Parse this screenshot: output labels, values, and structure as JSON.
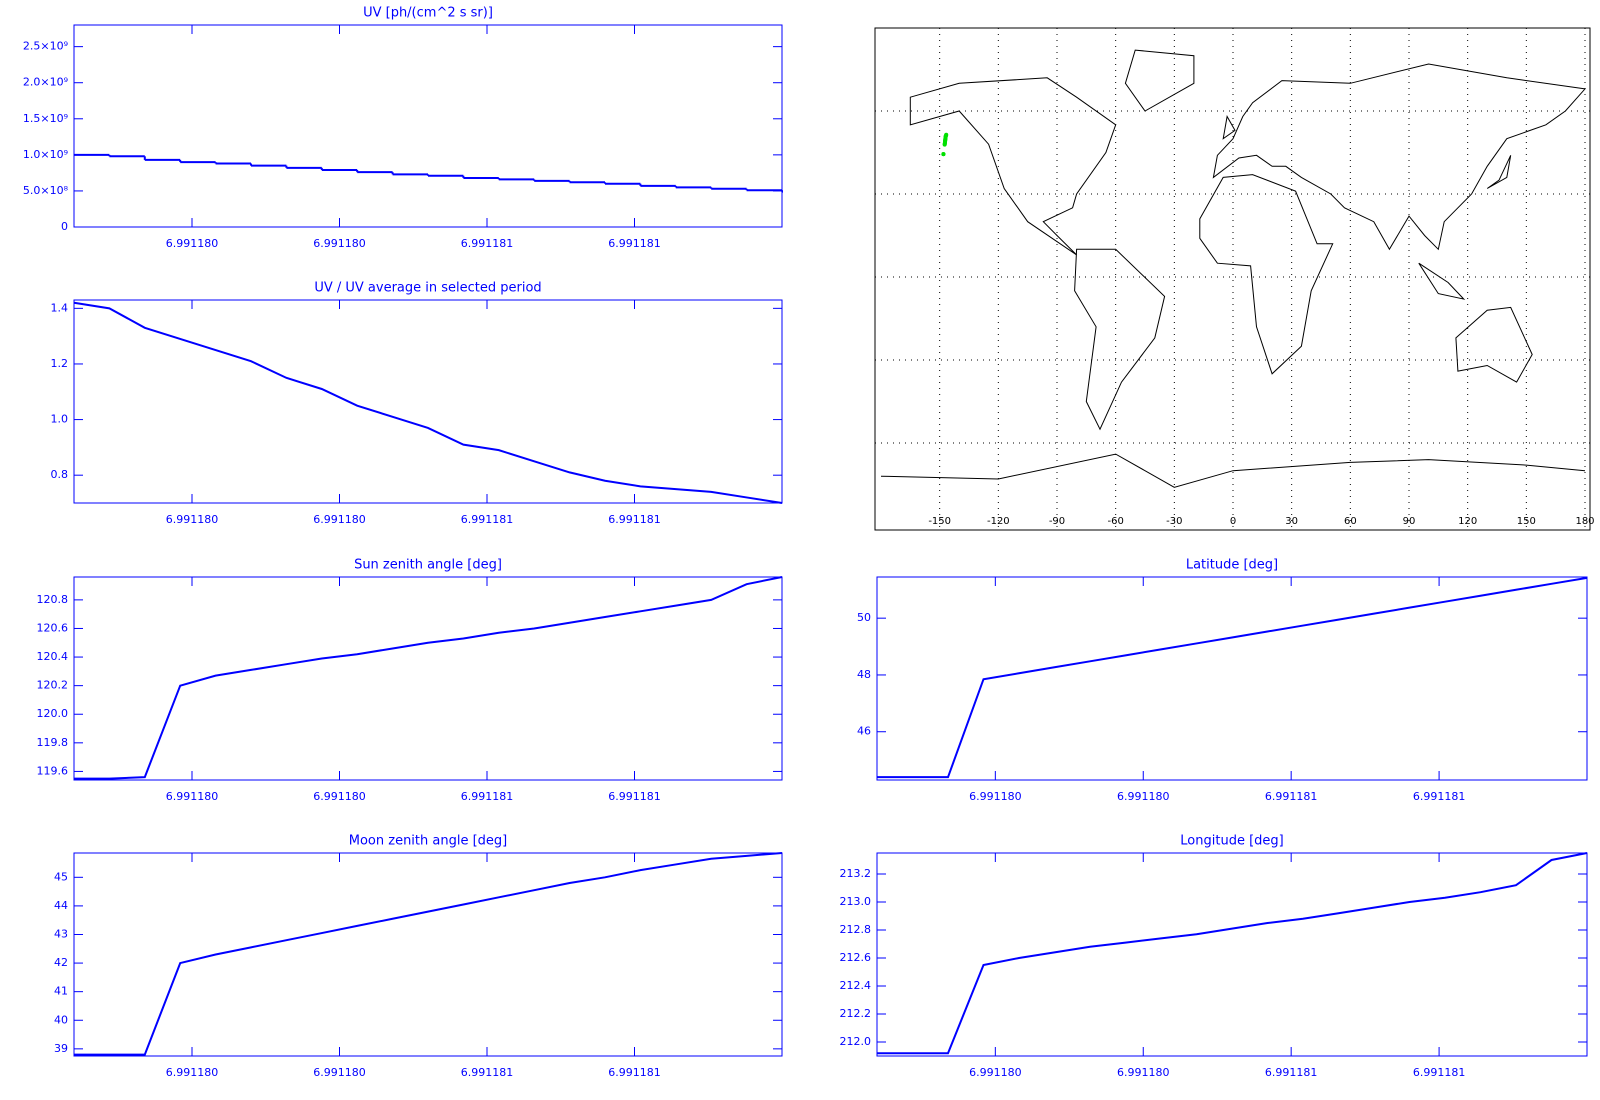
{
  "chart_data": [
    {
      "type": "step",
      "title": "UV [ph/(cm^2 s sr)]",
      "color": "#0000ff",
      "x": [
        6.9911791,
        6.99117922,
        6.99117934,
        6.99117946,
        6.99117958,
        6.9911797,
        6.99117982,
        6.99117994,
        6.99118006,
        6.99118018,
        6.9911803,
        6.99118042,
        6.99118054,
        6.99118066,
        6.99118078,
        6.9911809,
        6.99118102,
        6.99118114,
        6.99118126,
        6.99118138,
        6.9911815
      ],
      "values": [
        1000000000,
        980000000,
        930000000,
        900000000,
        880000000,
        850000000,
        820000000,
        790000000,
        760000000,
        730000000,
        710000000,
        680000000,
        660000000,
        640000000,
        620000000,
        600000000,
        570000000,
        550000000,
        530000000,
        510000000,
        490000000
      ],
      "xlim": [
        6.9911791,
        6.9911815
      ],
      "xticks": [
        {
          "value": 6.9911795,
          "label": "6.991180"
        },
        {
          "value": 6.99118,
          "label": "6.991180"
        },
        {
          "value": 6.9911805,
          "label": "6.991181"
        },
        {
          "value": 6.991181,
          "label": "6.991181"
        }
      ],
      "ylim": [
        0,
        2800000000
      ],
      "yticks": [
        0,
        {
          "value": 500000000,
          "label": "5.0×10⁸"
        },
        {
          "value": 1000000000,
          "label": "1.0×10⁹"
        },
        {
          "value": 1500000000,
          "label": "1.5×10⁹"
        },
        {
          "value": 2000000000,
          "label": "2.0×10⁹"
        },
        {
          "value": 2500000000,
          "label": "2.5×10⁹"
        }
      ]
    },
    {
      "type": "line",
      "title": "UV / UV average in selected period",
      "color": "#0000ff",
      "x": [
        6.9911791,
        6.99117922,
        6.99117934,
        6.99117946,
        6.99117958,
        6.9911797,
        6.99117982,
        6.99117994,
        6.99118006,
        6.99118018,
        6.9911803,
        6.99118042,
        6.99118054,
        6.99118066,
        6.99118078,
        6.9911809,
        6.99118102,
        6.99118114,
        6.99118126,
        6.99118138,
        6.9911815
      ],
      "values": [
        1.42,
        1.4,
        1.33,
        1.29,
        1.25,
        1.21,
        1.15,
        1.11,
        1.05,
        1.01,
        0.97,
        0.91,
        0.89,
        0.85,
        0.81,
        0.78,
        0.76,
        0.75,
        0.74,
        0.72,
        0.7
      ],
      "xlim": [
        6.9911791,
        6.9911815
      ],
      "xticks": [
        {
          "value": 6.9911795,
          "label": "6.991180"
        },
        {
          "value": 6.99118,
          "label": "6.991180"
        },
        {
          "value": 6.9911805,
          "label": "6.991181"
        },
        {
          "value": 6.991181,
          "label": "6.991181"
        }
      ],
      "ylim": [
        0.7,
        1.43
      ],
      "yticks": [
        0.8,
        {
          "value": 1,
          "label": "1.0"
        },
        1.2,
        1.4
      ]
    },
    {
      "type": "map",
      "xlim": [
        -180,
        180
      ],
      "ylim": [
        -90,
        90
      ],
      "xticks": [
        -150,
        -120,
        -90,
        -60,
        -30,
        0,
        30,
        60,
        90,
        120,
        150,
        180
      ],
      "ygrid": [
        -60,
        -30,
        0,
        30,
        60
      ],
      "grid": true,
      "track_color": "#00e000"
    },
    {
      "type": "line",
      "title": "Sun zenith angle [deg]",
      "color": "#0000ff",
      "x": [
        6.9911791,
        6.99117922,
        6.99117934,
        6.99117946,
        6.99117958,
        6.9911797,
        6.99117982,
        6.99117994,
        6.99118006,
        6.99118018,
        6.9911803,
        6.99118042,
        6.99118054,
        6.99118066,
        6.99118078,
        6.9911809,
        6.99118102,
        6.99118114,
        6.99118126,
        6.99118138,
        6.9911815
      ],
      "values": [
        119.55,
        119.55,
        119.56,
        120.2,
        120.27,
        120.31,
        120.35,
        120.39,
        120.42,
        120.46,
        120.5,
        120.53,
        120.57,
        120.6,
        120.64,
        120.68,
        120.72,
        120.76,
        120.8,
        120.91,
        120.96
      ],
      "xlim": [
        6.9911791,
        6.9911815
      ],
      "xticks": [
        {
          "value": 6.9911795,
          "label": "6.991180"
        },
        {
          "value": 6.99118,
          "label": "6.991180"
        },
        {
          "value": 6.9911805,
          "label": "6.991181"
        },
        {
          "value": 6.991181,
          "label": "6.991181"
        }
      ],
      "ylim": [
        119.54,
        120.96
      ],
      "yticks": [
        119.6,
        119.8,
        {
          "value": 120,
          "label": "120.0"
        },
        120.2,
        120.4,
        120.6,
        120.8
      ]
    },
    {
      "type": "line",
      "title": "Latitude [deg]",
      "color": "#0000ff",
      "x": [
        6.9911791,
        6.99117922,
        6.99117934,
        6.99117946,
        6.99117958,
        6.9911797,
        6.99117982,
        6.99117994,
        6.99118006,
        6.99118018,
        6.9911803,
        6.99118042,
        6.99118054,
        6.99118066,
        6.99118078,
        6.9911809,
        6.99118102,
        6.99118114,
        6.99118126,
        6.99118138,
        6.9911815
      ],
      "values": [
        44.4,
        44.4,
        44.4,
        47.85,
        48.06,
        48.27,
        48.48,
        48.69,
        48.9,
        49.11,
        49.32,
        49.53,
        49.74,
        49.95,
        50.16,
        50.37,
        50.58,
        50.79,
        51.0,
        51.21,
        51.42
      ],
      "xlim": [
        6.9911791,
        6.9911815
      ],
      "xticks": [
        {
          "value": 6.9911795,
          "label": "6.991180"
        },
        {
          "value": 6.99118,
          "label": "6.991180"
        },
        {
          "value": 6.9911805,
          "label": "6.991181"
        },
        {
          "value": 6.991181,
          "label": "6.991181"
        }
      ],
      "ylim": [
        44.3,
        51.45
      ],
      "yticks": [
        46,
        48,
        50
      ]
    },
    {
      "type": "line",
      "title": "Moon zenith angle [deg]",
      "color": "#0000ff",
      "x": [
        6.9911791,
        6.99117922,
        6.99117934,
        6.99117946,
        6.99117958,
        6.9911797,
        6.99117982,
        6.99117994,
        6.99118006,
        6.99118018,
        6.9911803,
        6.99118042,
        6.99118054,
        6.99118066,
        6.99118078,
        6.9911809,
        6.99118102,
        6.99118114,
        6.99118126,
        6.99118138,
        6.9911815
      ],
      "values": [
        38.8,
        38.8,
        38.8,
        42.0,
        42.3,
        42.55,
        42.8,
        43.05,
        43.3,
        43.55,
        43.8,
        44.05,
        44.3,
        44.55,
        44.8,
        45.0,
        45.25,
        45.45,
        45.65,
        45.75,
        45.85
      ],
      "xlim": [
        6.9911791,
        6.9911815
      ],
      "xticks": [
        {
          "value": 6.9911795,
          "label": "6.991180"
        },
        {
          "value": 6.99118,
          "label": "6.991180"
        },
        {
          "value": 6.9911805,
          "label": "6.991181"
        },
        {
          "value": 6.991181,
          "label": "6.991181"
        }
      ],
      "ylim": [
        38.75,
        45.85
      ],
      "yticks": [
        39,
        40,
        41,
        42,
        43,
        44,
        45
      ]
    },
    {
      "type": "line",
      "title": "Longitude [deg]",
      "color": "#0000ff",
      "x": [
        6.9911791,
        6.99117922,
        6.99117934,
        6.99117946,
        6.99117958,
        6.9911797,
        6.99117982,
        6.99117994,
        6.99118006,
        6.99118018,
        6.9911803,
        6.99118042,
        6.99118054,
        6.99118066,
        6.99118078,
        6.9911809,
        6.99118102,
        6.99118114,
        6.99118126,
        6.99118138,
        6.9911815
      ],
      "values": [
        211.92,
        211.92,
        211.92,
        212.55,
        212.6,
        212.64,
        212.68,
        212.71,
        212.74,
        212.77,
        212.81,
        212.85,
        212.88,
        212.92,
        212.96,
        213.0,
        213.03,
        213.07,
        213.12,
        213.3,
        213.35
      ],
      "xlim": [
        6.9911791,
        6.9911815
      ],
      "xticks": [
        {
          "value": 6.9911795,
          "label": "6.991180"
        },
        {
          "value": 6.99118,
          "label": "6.991180"
        },
        {
          "value": 6.9911805,
          "label": "6.991181"
        },
        {
          "value": 6.991181,
          "label": "6.991181"
        }
      ],
      "ylim": [
        211.9,
        213.35
      ],
      "yticks": [
        {
          "value": 212,
          "label": "212.0"
        },
        212.2,
        212.4,
        212.6,
        212.8,
        {
          "value": 213,
          "label": "213.0"
        },
        213.2
      ]
    }
  ]
}
